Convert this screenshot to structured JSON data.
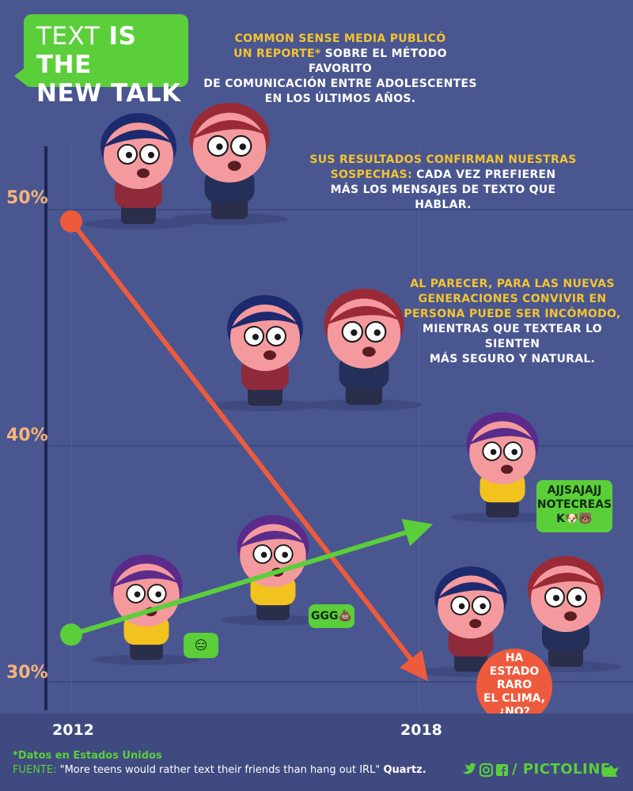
{
  "title": {
    "part1": "TEXT",
    "part2": "IS THE",
    "part3": "NEW TALK"
  },
  "intro": {
    "p1_highlight": "COMMON SENSE MEDIA PUBLICÓ",
    "p1_line2_highlight": "UN REPORTE*",
    "p1_line2_rest": "SOBRE EL MÉTODO FAVORITO",
    "p1_line3": "DE COMUNICACIÓN ENTRE ADOLESCENTES",
    "p1_line4": "EN LOS ÚLTIMOS AÑOS.",
    "p2_line1_highlight": "SUS RESULTADOS CONFIRMAN NUESTRAS",
    "p2_line2_highlight": "SOSPECHAS:",
    "p2_line2_rest": "CADA VEZ PREFIEREN",
    "p2_line3": "MÁS LOS MENSAJES DE TEXTO QUE HABLAR.",
    "p3_line1": "AL PARECER, PARA LAS NUEVAS",
    "p3_line2": "GENERACIONES CONVIVIR EN",
    "p3_line3": "PERSONA PUEDE SER INCÓMODO,",
    "p3_line4": "MIENTRAS QUE TEXTEAR LO SIENTEN",
    "p3_line5": "MÁS SEGURO Y NATURAL."
  },
  "chart_data": {
    "type": "line",
    "x": [
      "2012",
      "2018"
    ],
    "ylim": [
      30,
      50
    ],
    "yticks": [
      "50%",
      "40%",
      "30%"
    ],
    "series": [
      {
        "values": [
          49.5,
          30.5
        ],
        "color": "#ee5a3c"
      },
      {
        "values": [
          32,
          36.5
        ],
        "color": "#5bcf3a"
      }
    ]
  },
  "bubbles": {
    "emoji1": "😑",
    "ggg": "GGG💩",
    "aj1": "AJJSAJAJJ",
    "aj2": "NOTECREAS",
    "aj3": "K🐶🐻",
    "red1": "HA",
    "red2": "ESTADO",
    "red3": "RARO",
    "red4": "EL CLIMA,",
    "red5": "¿NO?"
  },
  "footer": {
    "note": "*Datos en Estados Unidos",
    "source_label": "FUENTE:",
    "source_quote": "\"More teens would rather text their friends than hang out IRL\"",
    "source_pub": "Quartz.",
    "brand": "/ PICTOLINE"
  },
  "icons": [
    "twitter-icon",
    "instagram-icon",
    "facebook-icon",
    "pictoline-logo-icon"
  ],
  "colors": {
    "background": "#4a5690",
    "accent_green": "#5bcf3a",
    "accent_red": "#ee5a3c",
    "highlight": "#f4c430"
  }
}
